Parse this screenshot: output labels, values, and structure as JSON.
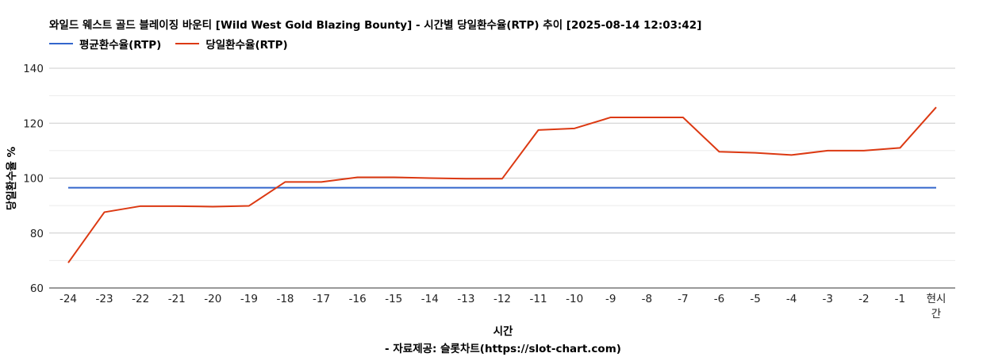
{
  "colors": {
    "average_line": "#3366cc",
    "daily_line": "#dc3912",
    "grid_major": "#cccccc",
    "grid_minor": "#ebebeb",
    "axis_text": "#222222"
  },
  "caption": "- 자료제공: 슬롯차트(https://slot-chart.com)",
  "chart_data": {
    "type": "line",
    "title": "와일드 웨스트 골드 블레이징 바운티 [Wild West Gold Blazing Bounty] - 시간별 당일환수율(RTP) 추이 [2025-08-14 12:03:42]",
    "xlabel": "시간",
    "ylabel": "당일환수율 %",
    "ylim": [
      60,
      140
    ],
    "yticks": [
      60,
      80,
      100,
      120,
      140
    ],
    "grid": true,
    "legend_position": "top-left",
    "categories": [
      "-24",
      "-23",
      "-22",
      "-21",
      "-20",
      "-19",
      "-18",
      "-17",
      "-16",
      "-15",
      "-14",
      "-13",
      "-12",
      "-11",
      "-10",
      "-9",
      "-8",
      "-7",
      "-6",
      "-5",
      "-4",
      "-3",
      "-2",
      "-1",
      "현시간"
    ],
    "series": [
      {
        "name": "평균환수율(RTP)",
        "color_key": "average_line",
        "values": [
          96.5,
          96.5,
          96.5,
          96.5,
          96.5,
          96.5,
          96.5,
          96.5,
          96.5,
          96.5,
          96.5,
          96.5,
          96.5,
          96.5,
          96.5,
          96.5,
          96.5,
          96.5,
          96.5,
          96.5,
          96.5,
          96.5,
          96.5,
          96.5,
          96.5
        ]
      },
      {
        "name": "당일환수율(RTP)",
        "color_key": "daily_line",
        "values": [
          69.2,
          87.6,
          89.8,
          89.8,
          89.6,
          89.9,
          98.6,
          98.6,
          100.3,
          100.3,
          100.0,
          99.8,
          99.8,
          117.5,
          118.1,
          122.1,
          122.1,
          122.1,
          109.6,
          109.2,
          108.4,
          110.0,
          110.0,
          111.0,
          125.8
        ]
      }
    ]
  }
}
